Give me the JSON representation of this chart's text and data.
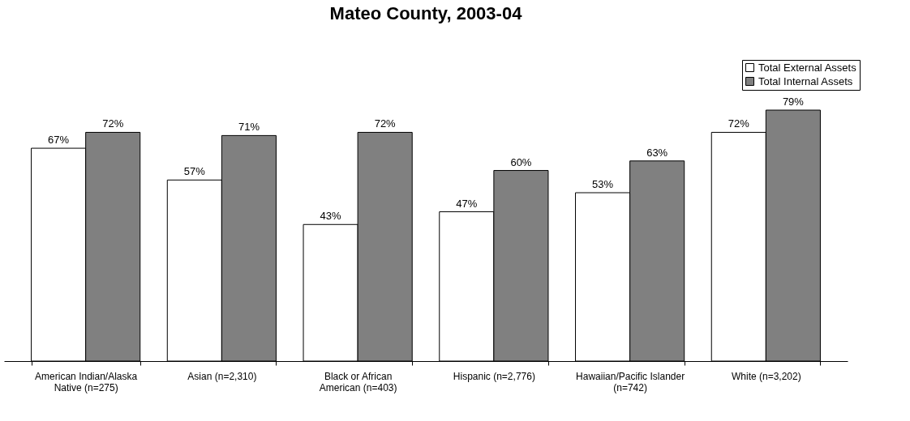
{
  "chart_data": {
    "type": "bar",
    "title": "Mateo County, 2003-04",
    "categories": [
      "American Indian/Alaska\nNative (n=275)",
      "Asian (n=2,310)",
      "Black or African\nAmerican (n=403)",
      "Hispanic (n=2,776)",
      "Hawaiian/Pacific Islander\n(n=742)",
      "White (n=3,202)"
    ],
    "series": [
      {
        "name": "Total External Assets",
        "color": "#ffffff",
        "values": [
          67,
          57,
          43,
          47,
          53,
          72
        ],
        "value_labels": [
          "67%",
          "57%",
          "43%",
          "47%",
          "53%",
          "72%"
        ]
      },
      {
        "name": "Total Internal Assets",
        "color": "#808080",
        "values": [
          72,
          71,
          72,
          60,
          63,
          79
        ],
        "value_labels": [
          "72%",
          "71%",
          "72%",
          "60%",
          "63%",
          "79%"
        ]
      }
    ],
    "legend": "top right",
    "grid": false
  }
}
